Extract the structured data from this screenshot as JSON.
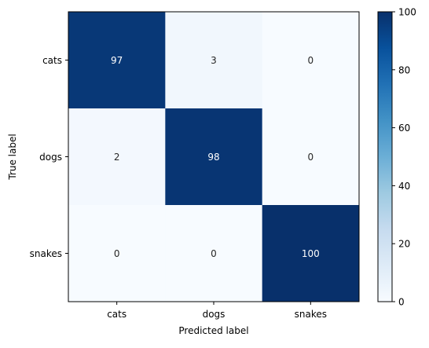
{
  "chart_data": {
    "type": "heatmap",
    "title": "",
    "xlabel": "Predicted label",
    "ylabel": "True label",
    "x_categories": [
      "cats",
      "dogs",
      "snakes"
    ],
    "y_categories": [
      "cats",
      "dogs",
      "snakes"
    ],
    "values": [
      [
        97,
        3,
        0
      ],
      [
        2,
        98,
        0
      ],
      [
        0,
        0,
        100
      ]
    ],
    "colormap": "Blues",
    "vmin": 0,
    "vmax": 100,
    "colorbar_ticks": [
      0,
      20,
      40,
      60,
      80,
      100
    ],
    "grid": false
  }
}
